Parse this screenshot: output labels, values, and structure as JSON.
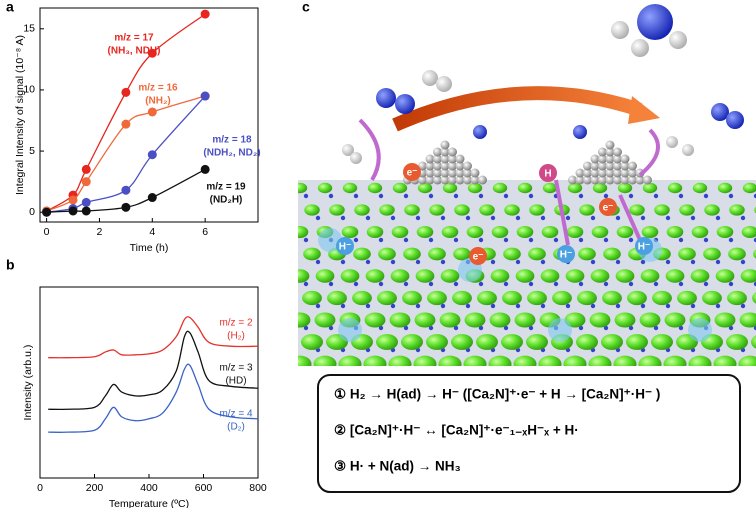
{
  "panel_labels": [
    "a",
    "b",
    "c"
  ],
  "chart_data": [
    {
      "type": "line",
      "xlabel": "Time (h)",
      "ylabel": "Integral Intensity of signal (10⁻⁸ A)",
      "x": [
        0,
        1,
        1.5,
        3,
        4,
        6
      ],
      "xlim": [
        -0.25,
        8
      ],
      "xticks": [
        0,
        2,
        4,
        6
      ],
      "ylim": [
        -0.8,
        16.7
      ],
      "yticks": [
        0,
        5,
        10,
        15
      ],
      "markers": true,
      "bold_labels": true,
      "series": [
        {
          "name": "m/z = 17",
          "species": "(NH₃, NDH)",
          "color": "#e8251f",
          "values": [
            0.1,
            1.4,
            3.5,
            9.8,
            13,
            16.2
          ]
        },
        {
          "name": "m/z = 16",
          "species": "(NH₂)",
          "color": "#ef6a3a",
          "values": [
            0.1,
            1,
            2.5,
            7.2,
            8.2,
            9.5
          ]
        },
        {
          "name": "m/z = 18",
          "species": "(NDH₂, ND₂)",
          "color": "#4b4fc4",
          "values": [
            0,
            0.3,
            0.8,
            1.8,
            4.7,
            9.5
          ]
        },
        {
          "name": "m/z = 19",
          "species": "(ND₂H)",
          "color": "#111111",
          "values": [
            0,
            0.1,
            0.1,
            0.4,
            1.2,
            3.5
          ]
        }
      ]
    },
    {
      "type": "line",
      "xlabel": "Temperature (ºC)",
      "ylabel": "Intensity (arb.u.)",
      "x": [
        30,
        100,
        200,
        240,
        270,
        300,
        350,
        400,
        450,
        500,
        530,
        550,
        580,
        620,
        700,
        800
      ],
      "xlim": [
        0,
        800
      ],
      "xticks": [
        0,
        200,
        400,
        600,
        800
      ],
      "ylim": [
        0,
        10
      ],
      "markers": false,
      "bold_labels": false,
      "series": [
        {
          "name": "m/z = 2",
          "species": "(H₂)",
          "color": "#e5322b",
          "values": [
            6.3,
            6.3,
            6.35,
            6.6,
            6.7,
            6.45,
            6.45,
            6.5,
            6.7,
            7.4,
            8.3,
            8.4,
            7.9,
            7.1,
            6.9,
            6.9
          ]
        },
        {
          "name": "m/z = 3",
          "species": "(HD)",
          "color": "#111111",
          "values": [
            3.6,
            3.6,
            3.7,
            4.3,
            4.9,
            4.5,
            4.3,
            4.35,
            4.6,
            5.6,
            7.4,
            7.6,
            6.6,
            5.1,
            4.8,
            4.7
          ]
        },
        {
          "name": "m/z = 4",
          "species": "(D₂)",
          "color": "#3a63c8",
          "values": [
            2.4,
            2.4,
            2.5,
            3.1,
            3.7,
            3.2,
            3.0,
            3.1,
            3.4,
            4.5,
            5.7,
            5.9,
            4.9,
            3.6,
            3.2,
            3.1
          ]
        }
      ]
    }
  ],
  "illustration": {
    "labels": [
      "e⁻",
      "e⁻",
      "e⁻",
      "H⁻",
      "H⁻",
      "H⁻",
      "H"
    ]
  },
  "equations": [
    "① H₂ → H(ad) → H⁻ ([Ca₂N]⁺·e⁻ + H → [Ca₂N]⁺·H⁻ )",
    "② [Ca₂N]⁺·H⁻ ↔ [Ca₂N]⁺·e⁻₁₋ₓH⁻ₓ + H·",
    "③ H· + N(ad) → NH₃"
  ]
}
